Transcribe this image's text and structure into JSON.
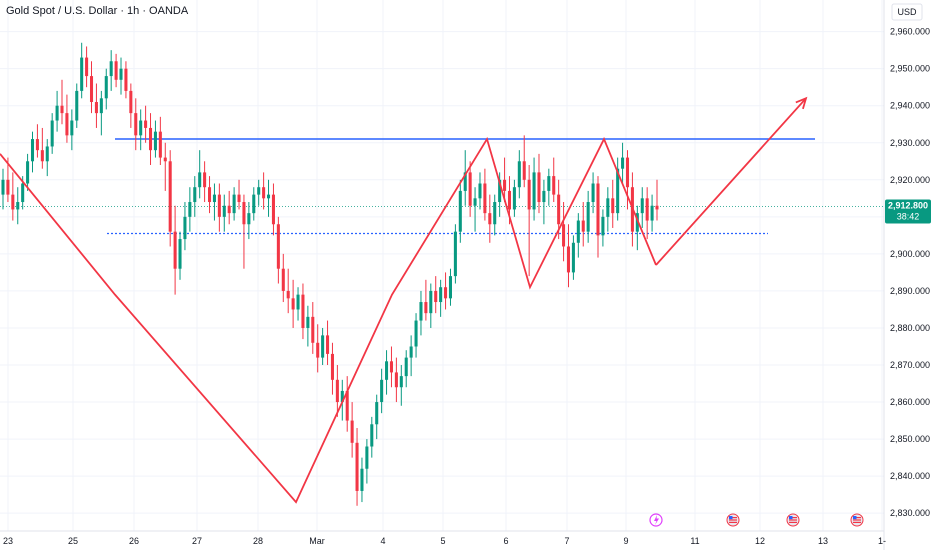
{
  "chart_data": {
    "type": "candlestick",
    "title": "Gold Spot / U.S. Dollar · 1h · OANDA",
    "currency": "USD",
    "y_axis": {
      "ticks": [
        "2,830.000",
        "2,840.000",
        "2,850.000",
        "2,860.000",
        "2,870.000",
        "2,880.000",
        "2,890.000",
        "2,900.000",
        "2,910.000",
        "2,920.000",
        "2,930.000",
        "2,940.000",
        "2,950.000",
        "2,960.000"
      ],
      "range": [
        2826,
        2968
      ]
    },
    "x_axis": {
      "tick_labels": [
        "23",
        "25",
        "26",
        "27",
        "28",
        "Mar",
        "4",
        "5",
        "6",
        "7",
        "9",
        "11",
        "12",
        "13",
        "1-"
      ],
      "range_days": [
        -0.5,
        20.2
      ]
    },
    "last_price": {
      "value": 2912.8,
      "label": "2,912.800",
      "countdown": "38:42",
      "color": "#089981"
    },
    "colors": {
      "up": "#089981",
      "down": "#f23645",
      "trendline": "#f23645",
      "resistance": "#2962ff"
    },
    "resistance_line": {
      "price": 2931,
      "from_day": 5.6,
      "to_day": 15.6
    },
    "support_dotted_line": {
      "price": 2905.5,
      "from_day": 5.4,
      "to_day": 14.5
    },
    "pattern_polyline": [
      [
        -0.5,
        2927
      ],
      [
        4.9,
        2889
      ],
      [
        9.3,
        2833
      ],
      [
        11.7,
        2889
      ],
      [
        14.6,
        2931
      ],
      [
        16.2,
        2891
      ],
      [
        18.2,
        2931
      ],
      [
        20.3,
        2897
      ]
    ],
    "projection": [
      [
        20.3,
        2897
      ],
      [
        25.3,
        2942
      ]
    ],
    "candles": [
      [
        2916,
        2923,
        2912,
        2920
      ],
      [
        2920,
        2926,
        2914,
        2916
      ],
      [
        2916,
        2922,
        2909,
        2912
      ],
      [
        2912,
        2918,
        2908,
        2914
      ],
      [
        2914,
        2921,
        2912,
        2919
      ],
      [
        2919,
        2927,
        2917,
        2925
      ],
      [
        2925,
        2933,
        2922,
        2931
      ],
      [
        2931,
        2935,
        2926,
        2928
      ],
      [
        2928,
        2934,
        2923,
        2925
      ],
      [
        2925,
        2931,
        2921,
        2929
      ],
      [
        2929,
        2938,
        2927,
        2936
      ],
      [
        2936,
        2944,
        2933,
        2940
      ],
      [
        2940,
        2947,
        2935,
        2938
      ],
      [
        2938,
        2943,
        2930,
        2932
      ],
      [
        2932,
        2939,
        2928,
        2936
      ],
      [
        2936,
        2946,
        2934,
        2944
      ],
      [
        2944,
        2957,
        2942,
        2953
      ],
      [
        2953,
        2956,
        2945,
        2948
      ],
      [
        2948,
        2952,
        2938,
        2941
      ],
      [
        2941,
        2946,
        2934,
        2938
      ],
      [
        2938,
        2944,
        2932,
        2942
      ],
      [
        2942,
        2950,
        2939,
        2948
      ],
      [
        2948,
        2955,
        2944,
        2952
      ],
      [
        2952,
        2954,
        2945,
        2947
      ],
      [
        2947,
        2953,
        2943,
        2950
      ],
      [
        2950,
        2952,
        2942,
        2944
      ],
      [
        2944,
        2946,
        2934,
        2938
      ],
      [
        2938,
        2942,
        2928,
        2932
      ],
      [
        2932,
        2939,
        2928,
        2936
      ],
      [
        2936,
        2940,
        2930,
        2934
      ],
      [
        2934,
        2938,
        2924,
        2928
      ],
      [
        2928,
        2936,
        2926,
        2933
      ],
      [
        2933,
        2937,
        2924,
        2926
      ],
      [
        2926,
        2930,
        2917,
        2925
      ],
      [
        2925,
        2928,
        2902,
        2906
      ],
      [
        2906,
        2913,
        2889,
        2896
      ],
      [
        2896,
        2906,
        2893,
        2904
      ],
      [
        2904,
        2914,
        2901,
        2910
      ],
      [
        2910,
        2918,
        2906,
        2914
      ],
      [
        2914,
        2921,
        2910,
        2918
      ],
      [
        2918,
        2928,
        2915,
        2922
      ],
      [
        2922,
        2925,
        2914,
        2918
      ],
      [
        2918,
        2921,
        2911,
        2914
      ],
      [
        2914,
        2919,
        2909,
        2916
      ],
      [
        2916,
        2919,
        2906,
        2910
      ],
      [
        2910,
        2916,
        2906,
        2913
      ],
      [
        2913,
        2917,
        2908,
        2911
      ],
      [
        2911,
        2918,
        2909,
        2916
      ],
      [
        2916,
        2920,
        2912,
        2914
      ],
      [
        2914,
        2916,
        2896,
        2908
      ],
      [
        2908,
        2914,
        2904,
        2911
      ],
      [
        2911,
        2918,
        2909,
        2916
      ],
      [
        2916,
        2920,
        2913,
        2918
      ],
      [
        2918,
        2922,
        2912,
        2915
      ],
      [
        2915,
        2920,
        2910,
        2916
      ],
      [
        2916,
        2919,
        2905,
        2908
      ],
      [
        2908,
        2910,
        2892,
        2896
      ],
      [
        2896,
        2900,
        2887,
        2890
      ],
      [
        2890,
        2896,
        2884,
        2888
      ],
      [
        2888,
        2893,
        2880,
        2885
      ],
      [
        2885,
        2891,
        2882,
        2889
      ],
      [
        2889,
        2892,
        2877,
        2880
      ],
      [
        2880,
        2886,
        2875,
        2883
      ],
      [
        2883,
        2887,
        2873,
        2876
      ],
      [
        2876,
        2881,
        2868,
        2872
      ],
      [
        2872,
        2880,
        2870,
        2878
      ],
      [
        2878,
        2882,
        2870,
        2873
      ],
      [
        2873,
        2876,
        2862,
        2866
      ],
      [
        2866,
        2870,
        2856,
        2860
      ],
      [
        2860,
        2866,
        2855,
        2863
      ],
      [
        2863,
        2867,
        2852,
        2855
      ],
      [
        2855,
        2860,
        2845,
        2849
      ],
      [
        2849,
        2853,
        2832,
        2836
      ],
      [
        2836,
        2845,
        2833,
        2842
      ],
      [
        2842,
        2850,
        2838,
        2848
      ],
      [
        2848,
        2856,
        2845,
        2854
      ],
      [
        2854,
        2862,
        2850,
        2860
      ],
      [
        2860,
        2869,
        2857,
        2866
      ],
      [
        2866,
        2874,
        2862,
        2871
      ],
      [
        2871,
        2875,
        2864,
        2868
      ],
      [
        2868,
        2872,
        2860,
        2864
      ],
      [
        2864,
        2870,
        2859,
        2867
      ],
      [
        2867,
        2874,
        2864,
        2872
      ],
      [
        2872,
        2878,
        2867,
        2875
      ],
      [
        2875,
        2884,
        2872,
        2882
      ],
      [
        2882,
        2890,
        2878,
        2887
      ],
      [
        2887,
        2893,
        2882,
        2884
      ],
      [
        2884,
        2892,
        2880,
        2890
      ],
      [
        2890,
        2894,
        2884,
        2887
      ],
      [
        2887,
        2893,
        2883,
        2891
      ],
      [
        2891,
        2895,
        2885,
        2888
      ],
      [
        2888,
        2896,
        2886,
        2894
      ],
      [
        2894,
        2908,
        2892,
        2906
      ],
      [
        2906,
        2920,
        2903,
        2917
      ],
      [
        2917,
        2928,
        2913,
        2922
      ],
      [
        2922,
        2925,
        2910,
        2913
      ],
      [
        2913,
        2918,
        2906,
        2915
      ],
      [
        2915,
        2922,
        2912,
        2919
      ],
      [
        2919,
        2923,
        2909,
        2911
      ],
      [
        2911,
        2916,
        2903,
        2908
      ],
      [
        2908,
        2916,
        2905,
        2914
      ],
      [
        2914,
        2922,
        2910,
        2920
      ],
      [
        2920,
        2926,
        2914,
        2917
      ],
      [
        2917,
        2921,
        2908,
        2912
      ],
      [
        2912,
        2920,
        2910,
        2918
      ],
      [
        2918,
        2928,
        2915,
        2925
      ],
      [
        2925,
        2932,
        2918,
        2920
      ],
      [
        2920,
        2924,
        2894,
        2912
      ],
      [
        2912,
        2926,
        2909,
        2922
      ],
      [
        2922,
        2927,
        2911,
        2914
      ],
      [
        2914,
        2920,
        2908,
        2917
      ],
      [
        2917,
        2923,
        2913,
        2921
      ],
      [
        2921,
        2926,
        2914,
        2916
      ],
      [
        2916,
        2920,
        2904,
        2908
      ],
      [
        2908,
        2914,
        2898,
        2902
      ],
      [
        2902,
        2908,
        2891,
        2895
      ],
      [
        2895,
        2905,
        2893,
        2903
      ],
      [
        2903,
        2911,
        2899,
        2909
      ],
      [
        2909,
        2914,
        2902,
        2906
      ],
      [
        2906,
        2917,
        2903,
        2914
      ],
      [
        2914,
        2922,
        2911,
        2919
      ],
      [
        2919,
        2921,
        2899,
        2905
      ],
      [
        2905,
        2912,
        2902,
        2910
      ],
      [
        2910,
        2918,
        2906,
        2915
      ],
      [
        2915,
        2920,
        2907,
        2911
      ],
      [
        2911,
        2926,
        2909,
        2923
      ],
      [
        2923,
        2930,
        2919,
        2926
      ],
      [
        2926,
        2928,
        2912,
        2918
      ],
      [
        2918,
        2922,
        2902,
        2906
      ],
      [
        2906,
        2913,
        2901,
        2911
      ],
      [
        2911,
        2918,
        2907,
        2915
      ],
      [
        2915,
        2918,
        2904,
        2909
      ],
      [
        2909,
        2916,
        2906,
        2913
      ],
      [
        2913,
        2920,
        2909,
        2912
      ]
    ]
  }
}
